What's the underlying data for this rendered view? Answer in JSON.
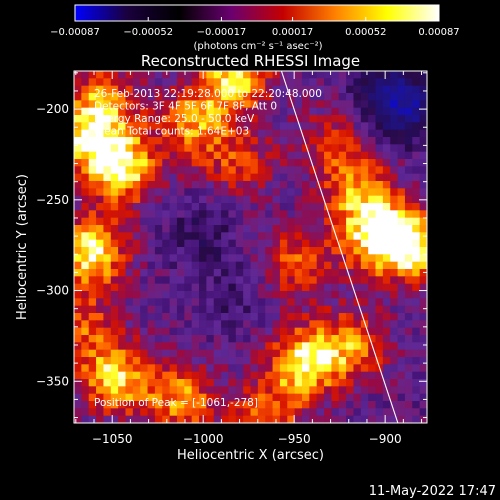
{
  "chart_data": {
    "type": "heatmap",
    "title": "Reconstructed RHESSI Image",
    "xlabel": "Heliocentric X (arcsec)",
    "ylabel": "Heliocentric Y (arcsec)",
    "xlim": [
      -1071,
      -877
    ],
    "ylim": [
      -373,
      -179
    ],
    "x_ticks": [
      -1050,
      -1000,
      -950,
      -900
    ],
    "y_ticks": [
      -350,
      -300,
      -250,
      -200
    ],
    "x_tick_labels": [
      "−1050",
      "−1000",
      "−950",
      "−900"
    ],
    "y_tick_labels": [
      "−350",
      "−300",
      "−250",
      "−200"
    ],
    "colorbar": {
      "min": -0.00087,
      "max": 0.00087,
      "ticks": [
        -0.00087,
        -0.00052,
        -0.00017,
        0.00017,
        0.00052,
        0.00087
      ],
      "tick_labels": [
        "−0.00087",
        "−0.00052",
        "−0.00017",
        "0.00017",
        "0.00052",
        "0.00087"
      ],
      "unit": "(photons cm⁻² s⁻¹ asec⁻²)",
      "colors": [
        "#0000ff",
        "#1a003d",
        "#000000",
        "#6a0070",
        "#c40000",
        "#ff8000",
        "#ffff00",
        "#ffffff"
      ]
    },
    "annotations": [
      "26-Feb-2013 22:19:28.000 to 22:20:48.000",
      "Detectors: 3F 4F 5F 6F 7F 8F, Att 0",
      "Energy Range: 25.0 - 50.0 keV",
      "Clean     Total counts: 1.64E+03"
    ],
    "peak_label": "Position of Peak = [-1061,-278]",
    "peak": [
      -1061,
      -278
    ],
    "limb_line": [
      [
        -957,
        -179
      ],
      [
        -893,
        -373
      ]
    ],
    "bright_regions": [
      {
        "x": -1062,
        "y": -279,
        "level": 0.85
      },
      {
        "x": -1045,
        "y": -232,
        "level": 0.85
      },
      {
        "x": -1065,
        "y": -215,
        "level": 0.6
      },
      {
        "x": -1005,
        "y": -208,
        "level": 0.6
      },
      {
        "x": -983,
        "y": -182,
        "level": 0.75
      },
      {
        "x": -1048,
        "y": -348,
        "level": 0.75
      },
      {
        "x": -1012,
        "y": -360,
        "level": 0.6
      },
      {
        "x": -945,
        "y": -340,
        "level": 0.8
      },
      {
        "x": -918,
        "y": -330,
        "level": 0.55
      },
      {
        "x": -905,
        "y": -270,
        "level": 0.75
      },
      {
        "x": -885,
        "y": -275,
        "level": 0.8
      },
      {
        "x": -915,
        "y": -245,
        "level": 0.55
      },
      {
        "x": -948,
        "y": -285,
        "level": 0.5
      },
      {
        "x": -1068,
        "y": -320,
        "level": 0.45
      },
      {
        "x": -1055,
        "y": -195,
        "level": 0.5
      },
      {
        "x": -980,
        "y": -230,
        "level": 0.4
      },
      {
        "x": -965,
        "y": -370,
        "level": 0.5
      },
      {
        "x": -930,
        "y": -218,
        "level": 0.35
      }
    ],
    "dark_regions": [
      {
        "x": -888,
        "y": -200,
        "level": 0.55
      },
      {
        "x": -900,
        "y": -188,
        "level": 0.4
      },
      {
        "x": -1000,
        "y": -270,
        "level": 0.25
      },
      {
        "x": -985,
        "y": -305,
        "level": 0.15
      }
    ]
  },
  "footer": {
    "timestamp": "11-May-2022 17:47"
  }
}
